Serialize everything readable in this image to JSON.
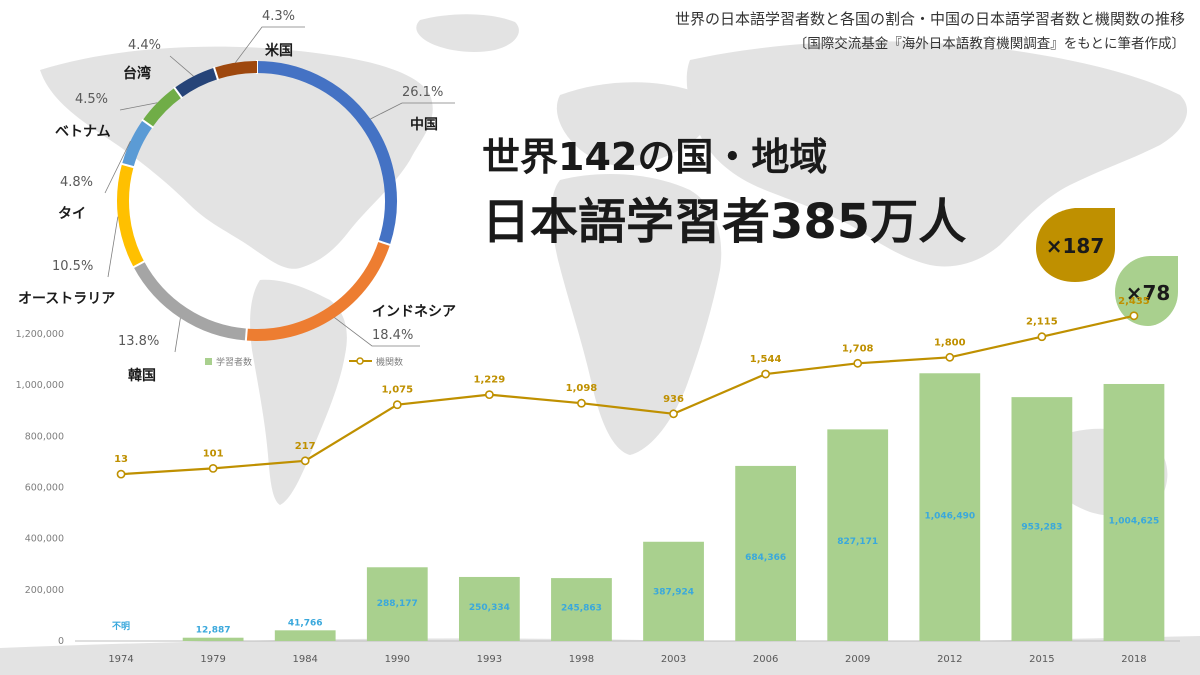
{
  "header": {
    "title": "世界の日本語学習者数と各国の割合・中国の日本語学習者数と機関数の推移",
    "source": "〔国際交流基金『海外日本語教育機関調査』をもとに筆者作成〕"
  },
  "headline": {
    "line1": "世界142の国・地域",
    "line2": "日本語学習者385万人"
  },
  "badges": {
    "institutions_multiplier": "×187",
    "learners_multiplier": "×78"
  },
  "legend": {
    "learners": "学習者数",
    "institutions": "機関数"
  },
  "colors": {
    "bar": "#a9d08e",
    "line": "#bf9000",
    "bar_label": "#3aa8dc",
    "badge_gold": "#bf9000",
    "badge_green": "#a9d08e"
  },
  "chart_data": [
    {
      "type": "pie",
      "style": "donut",
      "slices": [
        {
          "label": "中国",
          "value": 26.1,
          "display": "26.1%",
          "color": "#4472c4"
        },
        {
          "label": "インドネシア",
          "value": 18.4,
          "display": "18.4%",
          "color": "#ed7d31"
        },
        {
          "label": "韓国",
          "value": 13.8,
          "display": "13.8%",
          "color": "#a5a5a5"
        },
        {
          "label": "オーストラリア",
          "value": 10.5,
          "display": "10.5%",
          "color": "#ffc000"
        },
        {
          "label": "タイ",
          "value": 4.8,
          "display": "4.8%",
          "color": "#5b9bd5"
        },
        {
          "label": "ベトナム",
          "value": 4.5,
          "display": "4.5%",
          "color": "#70ad47"
        },
        {
          "label": "台湾",
          "value": 4.4,
          "display": "4.4%",
          "color": "#264478"
        },
        {
          "label": "米国",
          "value": 4.3,
          "display": "4.3%",
          "color": "#9e480e"
        }
      ]
    },
    {
      "type": "bar",
      "categories": [
        "1974",
        "1979",
        "1984",
        "1990",
        "1993",
        "1998",
        "2003",
        "2006",
        "2009",
        "2012",
        "2015",
        "2018"
      ],
      "series": [
        {
          "name": "学習者数",
          "type": "bar",
          "values": [
            null,
            12887,
            41766,
            288177,
            250334,
            245863,
            387924,
            684366,
            827171,
            1046490,
            953283,
            1004625
          ],
          "labels": [
            "不明",
            "12,887",
            "41,766",
            "288,177",
            "250,334",
            "245,863",
            "387,924",
            "684,366",
            "827,171",
            "1,046,490",
            "953,283",
            "1,004,625"
          ]
        },
        {
          "name": "機関数",
          "type": "line",
          "values": [
            13,
            101,
            217,
            1075,
            1229,
            1098,
            936,
            1544,
            1708,
            1800,
            2115,
            2435
          ],
          "labels": [
            "13",
            "101",
            "217",
            "1,075",
            "1,229",
            "1,098",
            "936",
            "1,544",
            "1,708",
            "1,800",
            "2,115",
            "2,435"
          ]
        }
      ],
      "ylim": [
        0,
        1200000
      ],
      "yticks": [
        "0",
        "200,000",
        "400,000",
        "600,000",
        "800,000",
        "1,000,000",
        "1,200,000"
      ],
      "grid": false
    }
  ]
}
